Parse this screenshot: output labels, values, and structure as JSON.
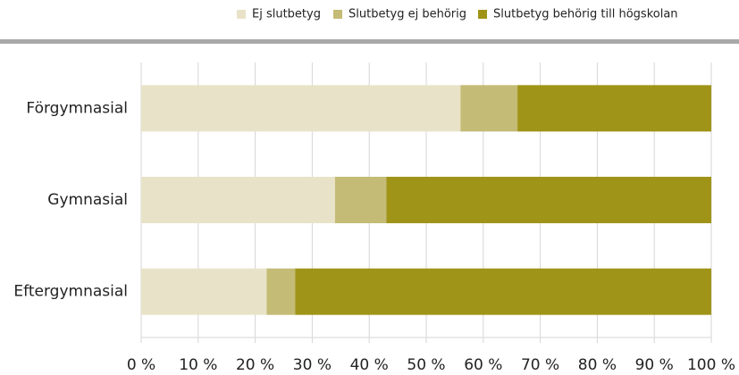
{
  "chart_data": {
    "type": "stacked-barh",
    "categories": [
      "Förgymnasial",
      "Gymnasial",
      "Eftergymnasial"
    ],
    "series": [
      {
        "name": "Ej slutbetyg",
        "color": "#e8e3c8",
        "values": [
          56,
          34,
          22
        ]
      },
      {
        "name": "Slutbetyg ej behörig",
        "color": "#c4bb76",
        "values": [
          10,
          9,
          5
        ]
      },
      {
        "name": "Slutbetyg behörig till högskolan",
        "color": "#a09418",
        "values": [
          34,
          57,
          73
        ]
      }
    ],
    "xlim": [
      0,
      100
    ],
    "xticks": [
      {
        "value": 0,
        "label": "0 %"
      },
      {
        "value": 10,
        "label": "10 %"
      },
      {
        "value": 20,
        "label": "20 %"
      },
      {
        "value": 30,
        "label": "30 %"
      },
      {
        "value": 40,
        "label": "40 %"
      },
      {
        "value": 50,
        "label": "50 %"
      },
      {
        "value": 60,
        "label": "60 %"
      },
      {
        "value": 70,
        "label": "70 %"
      },
      {
        "value": 80,
        "label": "80 %"
      },
      {
        "value": 90,
        "label": "90 %"
      },
      {
        "value": 100,
        "label": "100 %"
      }
    ],
    "grid": true,
    "legend": "top"
  }
}
